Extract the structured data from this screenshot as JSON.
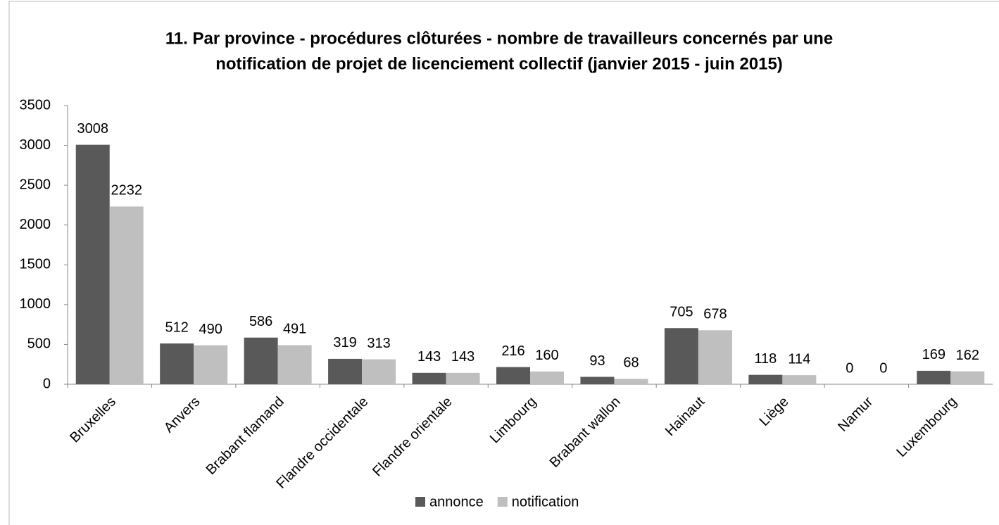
{
  "chart_data": {
    "type": "bar",
    "title": [
      "11. Par province - procédures clôturées - nombre de travailleurs concernés par une",
      "notification de projet de licenciement collectif (janvier 2015 - juin 2015)"
    ],
    "categories": [
      "Bruxelles",
      "Anvers",
      "Brabant flamand",
      "Flandre occidentale",
      "Flandre orientale",
      "Limbourg",
      "Brabant wallon",
      "Hainaut",
      "Liège",
      "Namur",
      "Luxembourg"
    ],
    "series": [
      {
        "name": "annonce",
        "color": "#595959",
        "values": [
          3008,
          512,
          586,
          319,
          143,
          216,
          93,
          705,
          118,
          0,
          169
        ]
      },
      {
        "name": "notification",
        "color": "#bfbfbf",
        "values": [
          2232,
          490,
          491,
          313,
          143,
          160,
          68,
          678,
          114,
          0,
          162
        ]
      }
    ],
    "ylim": [
      0,
      3500
    ],
    "yticks": [
      0,
      500,
      1000,
      1500,
      2000,
      2500,
      3000,
      3500
    ],
    "grid": false,
    "legend": "bottom"
  }
}
